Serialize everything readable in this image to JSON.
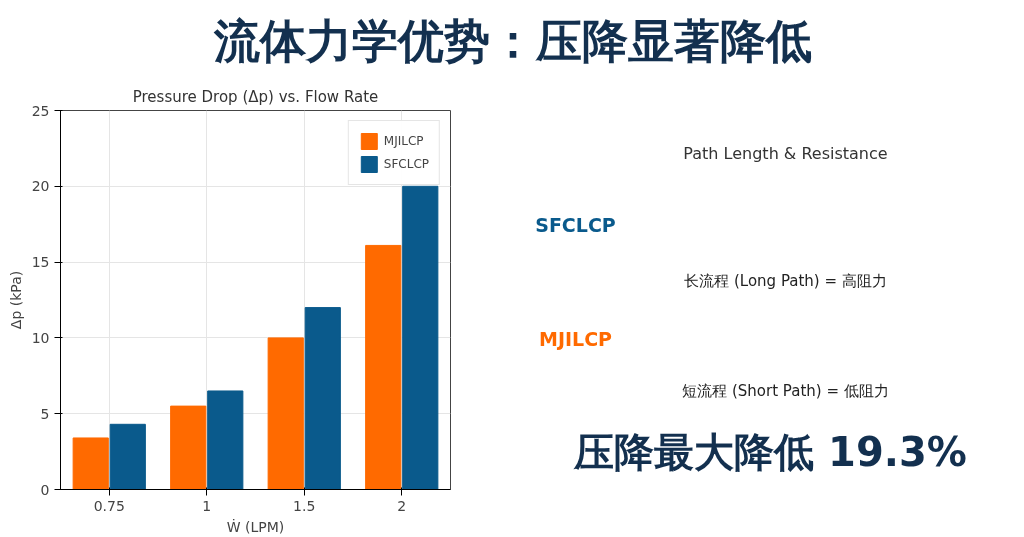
{
  "chart_data": [
    {
      "type": "bar",
      "title": "Pressure Drop (Δp) vs. Flow Rate",
      "xlabel": "Ẇ (LPM)",
      "ylabel": "Δp (kPa)",
      "categories": [
        "0.75",
        "1",
        "1.5",
        "2"
      ],
      "series": [
        {
          "name": "MJILCP",
          "color": "#ff6a00",
          "values": [
            3.4,
            5.5,
            10,
            16.1
          ]
        },
        {
          "name": "SFCLCP",
          "color": "#0a5a8c",
          "values": [
            4.3,
            6.5,
            12,
            20
          ]
        }
      ],
      "ylim": [
        0,
        25
      ],
      "yticks": [
        0,
        5,
        10,
        15,
        20,
        25
      ],
      "grid": true,
      "legend": "top right"
    },
    {
      "type": "other",
      "title": "流体力学优势：压降显著降低",
      "subtitle": "Path Length & Resistance",
      "annotations": [
        "SFCLCP",
        "长流程 (Long Path) = 高阻力",
        "MJILCP",
        "短流程 (Short Path) = 低阻力",
        "压降最大降低 19.3%"
      ]
    }
  ]
}
